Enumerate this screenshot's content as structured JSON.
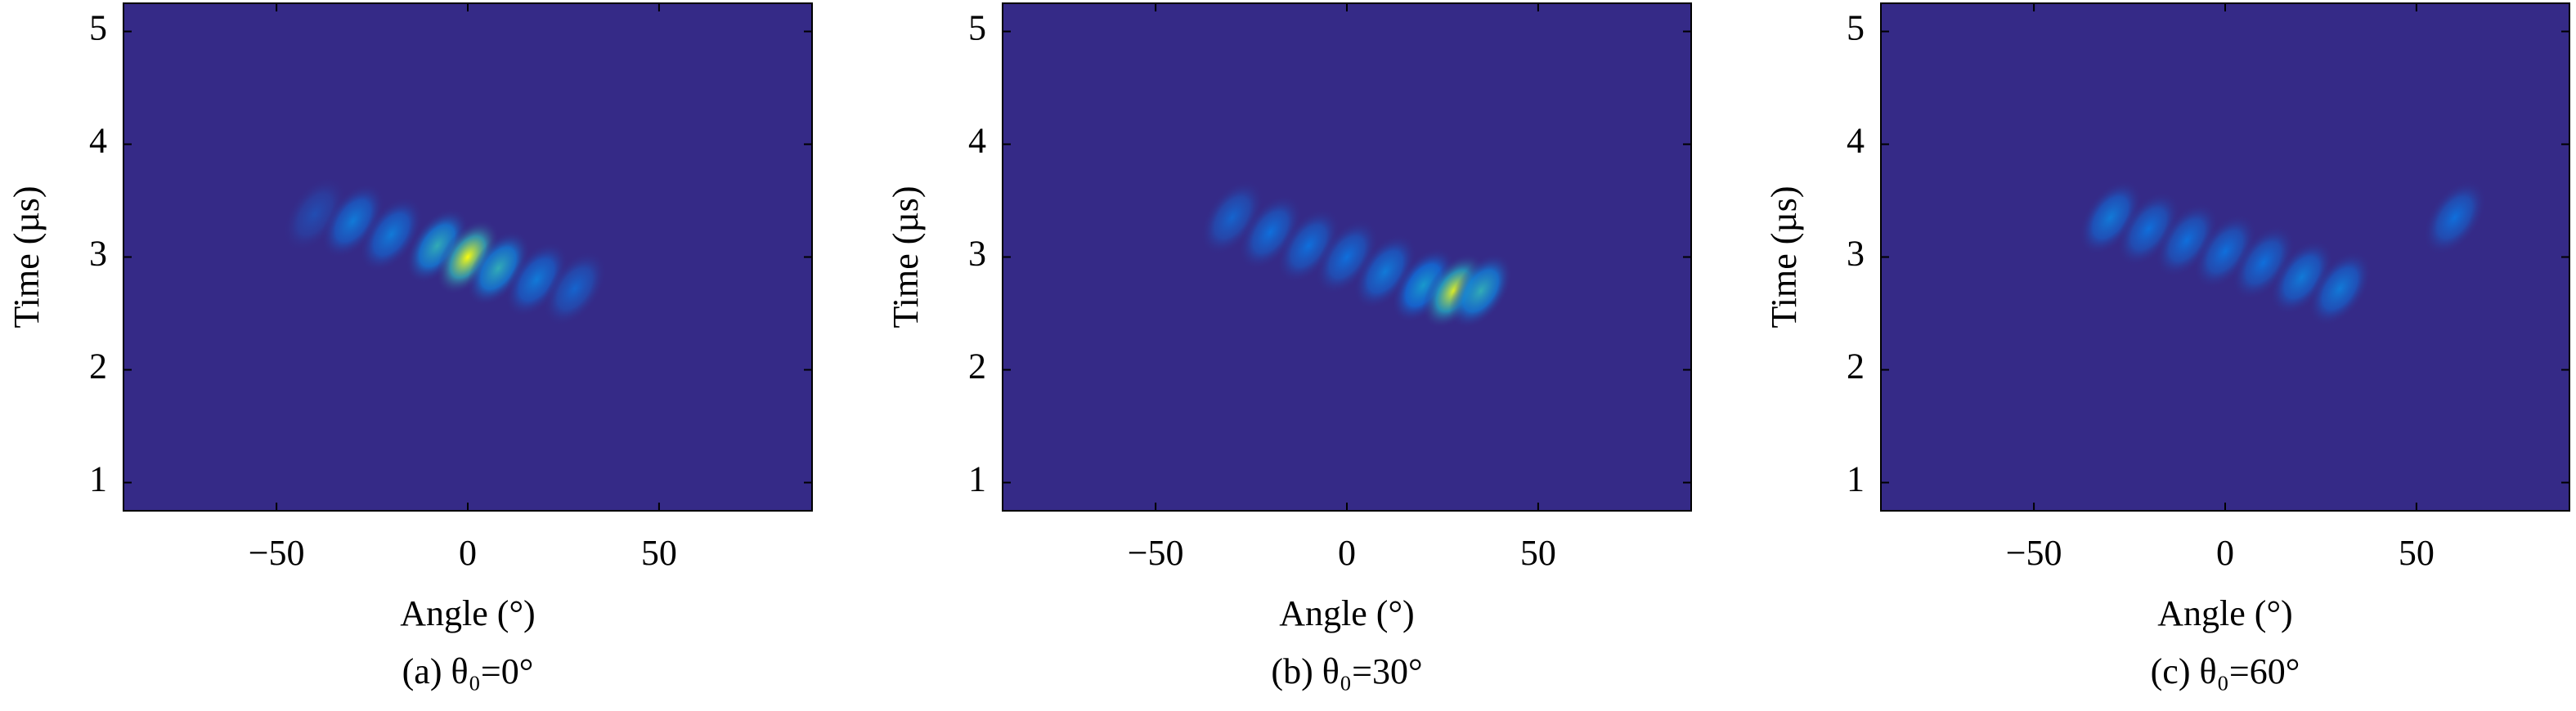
{
  "chart_data": [
    {
      "type": "heatmap",
      "caption": "(a) θ₀=0°",
      "x_label": "Angle (°)",
      "y_label": "Time (µs)",
      "xlim": [
        -90,
        90
      ],
      "ylim": [
        0.75,
        5.25
      ],
      "xticks": [
        {
          "value": -50,
          "label": "−50"
        },
        0,
        50
      ],
      "yticks": [
        1,
        2,
        3,
        4,
        5
      ],
      "points": {
        "angle": [
          -40,
          -30,
          -20,
          -8,
          0,
          8,
          18,
          28
        ],
        "time": [
          3.38,
          3.32,
          3.2,
          3.1,
          3.0,
          2.9,
          2.8,
          2.72
        ],
        "intensity": [
          0.15,
          0.35,
          0.35,
          0.6,
          1.0,
          0.6,
          0.35,
          0.25
        ]
      }
    },
    {
      "type": "heatmap",
      "caption": "(b) θ₀=30°",
      "x_label": "Angle (°)",
      "y_label": "Time (µs)",
      "xlim": [
        -90,
        90
      ],
      "ylim": [
        0.75,
        5.25
      ],
      "xticks": [
        {
          "value": -50,
          "label": "−50"
        },
        0,
        50
      ],
      "yticks": [
        1,
        2,
        3,
        4,
        5
      ],
      "points": {
        "angle": [
          -30,
          -20,
          -10,
          0,
          10,
          20,
          28,
          35
        ],
        "time": [
          3.35,
          3.22,
          3.1,
          3.0,
          2.87,
          2.75,
          2.7,
          2.7
        ],
        "intensity": [
          0.25,
          0.3,
          0.3,
          0.3,
          0.35,
          0.5,
          0.95,
          0.6
        ]
      }
    },
    {
      "type": "heatmap",
      "caption": "(c) θ₀=60°",
      "x_label": "Angle (°)",
      "y_label": "Time (µs)",
      "xlim": [
        -90,
        90
      ],
      "ylim": [
        0.75,
        5.25
      ],
      "xticks": [
        {
          "value": -50,
          "label": "−50"
        },
        0,
        50
      ],
      "yticks": [
        1,
        2,
        3,
        4,
        5
      ],
      "points": {
        "angle": [
          -30,
          -20,
          -10,
          0,
          10,
          20,
          30,
          60
        ],
        "time": [
          3.35,
          3.25,
          3.15,
          3.05,
          2.95,
          2.82,
          2.72,
          3.35
        ],
        "intensity": [
          0.35,
          0.3,
          0.3,
          0.3,
          0.3,
          0.35,
          0.35,
          0.3
        ]
      }
    }
  ]
}
